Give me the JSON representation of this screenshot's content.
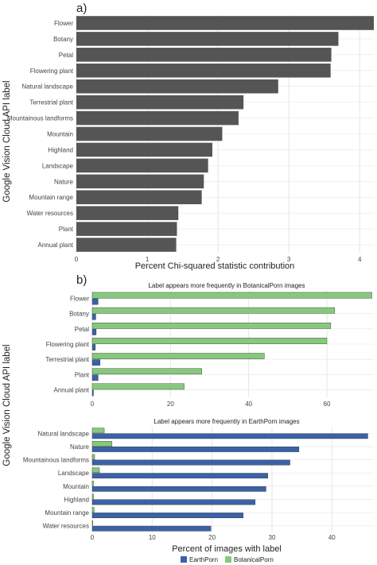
{
  "colors": {
    "bar_a": "#555555",
    "earthporn": "#3b62a8",
    "botanicalporn": "#86c97c",
    "grid": "#e6e6e6",
    "text": "#444444"
  },
  "shared_ylabel": "Google Vision Cloud API label",
  "legend": {
    "position": "bottom",
    "items": [
      {
        "label": "EarthPorn",
        "color": "#3b62a8"
      },
      {
        "label": "BotanicalPorn",
        "color": "#86c97c"
      }
    ]
  },
  "chart_data": [
    {
      "panel": "a)",
      "type": "bar",
      "orientation": "horizontal",
      "title": "",
      "xlabel": "Percent Chi-squared statistic contribution",
      "ylabel": "Google Vision Cloud API label",
      "xlim": [
        0,
        4.2
      ],
      "xticks": [
        0,
        1,
        2,
        3,
        4
      ],
      "grid": true,
      "categories": [
        "Flower",
        "Botany",
        "Petal",
        "Flowering plant",
        "Natural landscape",
        "Terrestrial plant",
        "Mountainous landforms",
        "Mountain",
        "Highland",
        "Landscape",
        "Nature",
        "Mountain range",
        "Water resources",
        "Plant",
        "Annual plant"
      ],
      "values": [
        4.2,
        3.7,
        3.6,
        3.59,
        2.85,
        2.36,
        2.29,
        2.06,
        1.92,
        1.86,
        1.8,
        1.77,
        1.44,
        1.42,
        1.41
      ]
    },
    {
      "panel": "b)",
      "type": "bar",
      "orientation": "horizontal",
      "title": "Label appears more frequently in BotanicalPorn images",
      "xlabel": "",
      "ylabel": "Google Vision Cloud API label",
      "xlim": [
        0,
        72
      ],
      "xticks": [
        0,
        20,
        40,
        60
      ],
      "grid": true,
      "categories": [
        "Flower",
        "Botany",
        "Petal",
        "Flowering plant",
        "Terrestrial plant",
        "Plant",
        "Annual plant"
      ],
      "series": [
        {
          "name": "EarthPorn",
          "values": [
            1.5,
            0.9,
            1.0,
            0.8,
            2.0,
            1.5,
            0.3
          ]
        },
        {
          "name": "BotanicalPorn",
          "values": [
            71.5,
            62,
            61,
            60,
            44,
            28,
            23.5
          ]
        }
      ]
    },
    {
      "type": "bar",
      "orientation": "horizontal",
      "title": "Label appears more frequently in EarthPorn images",
      "xlabel": "Percent of images with label",
      "ylabel": "Google Vision Cloud API label",
      "xlim": [
        0,
        47
      ],
      "xticks": [
        0,
        10,
        20,
        30,
        40
      ],
      "grid": true,
      "categories": [
        "Natural landscape",
        "Nature",
        "Mountainous landforms",
        "Landscape",
        "Mountain",
        "Highland",
        "Mountain range",
        "Water resources"
      ],
      "series": [
        {
          "name": "EarthPorn",
          "values": [
            46,
            34.5,
            33,
            29.3,
            29,
            27.2,
            25.2,
            19.8
          ]
        },
        {
          "name": "BotanicalPorn",
          "values": [
            2.0,
            3.3,
            0.4,
            1.2,
            0.2,
            0.2,
            0.3,
            0.1
          ]
        }
      ]
    }
  ]
}
